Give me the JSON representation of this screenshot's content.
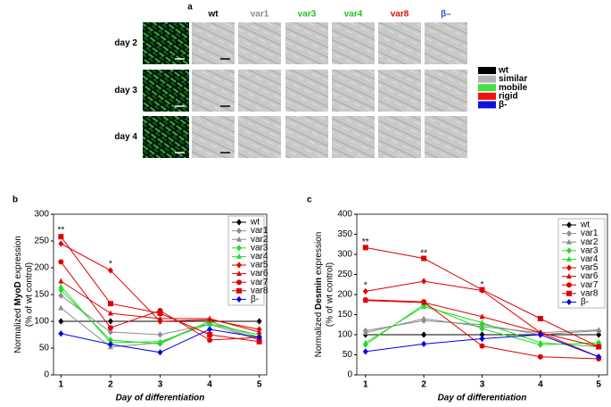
{
  "panel_a": {
    "letter": "a",
    "columns": [
      {
        "label": "wt",
        "color": "#000000"
      },
      {
        "label": "var1",
        "color": "#8c8c8c"
      },
      {
        "label": "var3",
        "color": "#22c322"
      },
      {
        "label": "var4",
        "color": "#22c322"
      },
      {
        "label": "var8",
        "color": "#e01010"
      },
      {
        "label": "β–",
        "color": "#3355cc"
      }
    ],
    "rows": [
      "day 2",
      "day 3",
      "day 4"
    ],
    "legend": [
      {
        "label": "wt",
        "color": "#000000"
      },
      {
        "label": "similar",
        "color": "#b4b4b4"
      },
      {
        "label": "mobile",
        "color": "#44e044"
      },
      {
        "label": "rigid",
        "color": "#ee1111"
      },
      {
        "label": "β-",
        "color": "#1010dd"
      }
    ]
  },
  "chart_data": [
    {
      "type": "line",
      "letter": "b",
      "ylabel": {
        "pre": "Normalized ",
        "bold": "MyoD",
        "post": " expression",
        "line2": "(% of wt control)"
      },
      "xlabel": "Day of differentiation",
      "x": [
        1,
        2,
        3,
        4,
        5
      ],
      "xlim": [
        0.85,
        5.15
      ],
      "xticks": [
        1,
        2,
        3,
        4,
        5
      ],
      "ylim": [
        0,
        300
      ],
      "yticks": [
        0,
        50,
        100,
        150,
        200,
        250,
        300
      ],
      "annotations": [
        {
          "text": "**",
          "x": 1,
          "y": 270
        },
        {
          "text": "*",
          "x": 2,
          "y": 207
        }
      ],
      "series": [
        {
          "name": "wt",
          "color": "#000000",
          "marker": "diamond",
          "values": [
            100,
            100,
            100,
            100,
            100
          ]
        },
        {
          "name": "var1",
          "color": "#8c8c8c",
          "marker": "diamond",
          "values": [
            148,
            80,
            75,
            95,
            65
          ]
        },
        {
          "name": "var2",
          "color": "#8c8c8c",
          "marker": "triangle",
          "values": [
            125,
            52,
            60,
            100,
            65
          ]
        },
        {
          "name": "var3",
          "color": "#22dd22",
          "marker": "diamond",
          "values": [
            158,
            65,
            58,
            100,
            70
          ]
        },
        {
          "name": "var4",
          "color": "#22dd22",
          "marker": "triangle",
          "values": [
            165,
            60,
            62,
            95,
            75
          ]
        },
        {
          "name": "var5",
          "color": "#e00000",
          "marker": "diamond",
          "values": [
            245,
            195,
            100,
            103,
            85
          ]
        },
        {
          "name": "var6",
          "color": "#e00000",
          "marker": "triangle",
          "values": [
            175,
            115,
            105,
            105,
            80
          ]
        },
        {
          "name": "var7",
          "color": "#e00000",
          "marker": "circle",
          "values": [
            211,
            88,
            120,
            65,
            70
          ]
        },
        {
          "name": "var8",
          "color": "#e00000",
          "marker": "square",
          "values": [
            258,
            133,
            115,
            75,
            62
          ]
        },
        {
          "name": "β-",
          "color": "#0000ee",
          "marker": "diamond",
          "values": [
            77,
            57,
            42,
            85,
            70
          ]
        }
      ]
    },
    {
      "type": "line",
      "letter": "c",
      "ylabel": {
        "pre": "Normalized ",
        "bold": "Desmin",
        "post": " expression",
        "line2": "(% of wt control)"
      },
      "xlabel": "Day of differentiation",
      "x": [
        1,
        2,
        3,
        4,
        5
      ],
      "xlim": [
        0.85,
        5.15
      ],
      "xticks": [
        1,
        2,
        3,
        4,
        5
      ],
      "ylim": [
        0,
        400
      ],
      "yticks": [
        0,
        50,
        100,
        150,
        200,
        250,
        300,
        350,
        400
      ],
      "annotations": [
        {
          "text": "**",
          "x": 1,
          "y": 330
        },
        {
          "text": "*",
          "x": 1,
          "y": 222
        },
        {
          "text": "**",
          "x": 2,
          "y": 303
        },
        {
          "text": "*",
          "x": 3,
          "y": 224
        }
      ],
      "series": [
        {
          "name": "wt",
          "color": "#000000",
          "marker": "diamond",
          "values": [
            100,
            100,
            100,
            100,
            100
          ]
        },
        {
          "name": "var1",
          "color": "#8c8c8c",
          "marker": "diamond",
          "values": [
            110,
            135,
            125,
            100,
            110
          ]
        },
        {
          "name": "var2",
          "color": "#8c8c8c",
          "marker": "triangle",
          "values": [
            105,
            140,
            120,
            105,
            112
          ]
        },
        {
          "name": "var3",
          "color": "#22dd22",
          "marker": "diamond",
          "values": [
            75,
            175,
            115,
            75,
            80
          ]
        },
        {
          "name": "var4",
          "color": "#22dd22",
          "marker": "triangle",
          "values": [
            80,
            170,
            130,
            80,
            70
          ]
        },
        {
          "name": "var5",
          "color": "#e00000",
          "marker": "diamond",
          "values": [
            208,
            233,
            210,
            105,
            45
          ]
        },
        {
          "name": "var6",
          "color": "#e00000",
          "marker": "triangle",
          "values": [
            185,
            180,
            145,
            105,
            70
          ]
        },
        {
          "name": "var7",
          "color": "#e00000",
          "marker": "circle",
          "values": [
            187,
            182,
            72,
            45,
            40
          ]
        },
        {
          "name": "var8",
          "color": "#e00000",
          "marker": "square",
          "values": [
            317,
            290,
            212,
            140,
            70
          ]
        },
        {
          "name": "β-",
          "color": "#0000ee",
          "marker": "diamond",
          "values": [
            58,
            77,
            90,
            100,
            45
          ]
        }
      ]
    }
  ]
}
